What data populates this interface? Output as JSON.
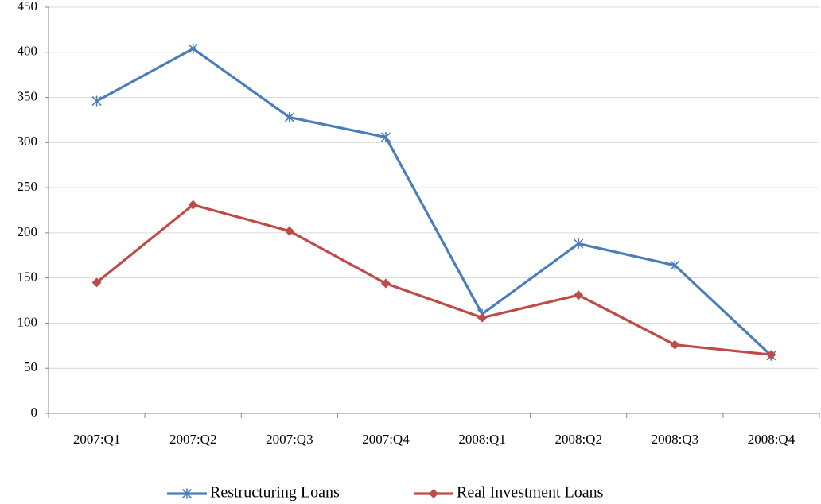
{
  "chart_data": {
    "type": "line",
    "categories": [
      "2007:Q1",
      "2007:Q2",
      "2007:Q3",
      "2007:Q4",
      "2008:Q1",
      "2008:Q2",
      "2008:Q3",
      "2008:Q4"
    ],
    "series": [
      {
        "name": "Restructuring Loans",
        "color": "#4a7ebb",
        "marker": "asterisk",
        "values": [
          346,
          404,
          328,
          306,
          110,
          188,
          164,
          64
        ]
      },
      {
        "name": "Real Investment Loans",
        "color": "#be4b48",
        "marker": "diamond",
        "values": [
          145,
          231,
          202,
          144,
          106,
          131,
          76,
          65
        ]
      }
    ],
    "ylim": [
      0,
      450
    ],
    "yticks": [
      0,
      50,
      100,
      150,
      200,
      250,
      300,
      350,
      400,
      450
    ],
    "grid": true,
    "legend": "bottom"
  }
}
